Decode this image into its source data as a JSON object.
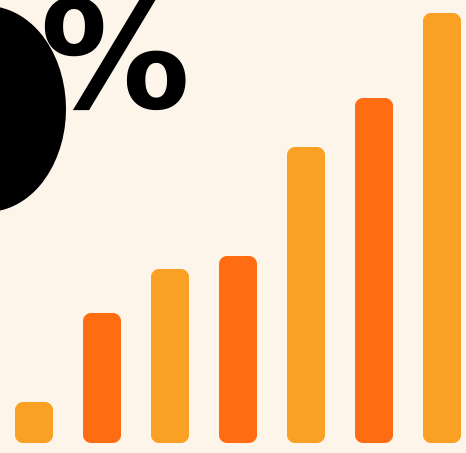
{
  "graphic": {
    "symbol": "%",
    "background_color": "#fdf4ea",
    "text_color": "#000000"
  },
  "bars": {
    "values": [
      1,
      3.2,
      4.3,
      4.6,
      7.3,
      8.5,
      10.6
    ],
    "colors": [
      "#f9a025",
      "#ff6c11",
      "#f9a025",
      "#ff6c11",
      "#f9a025",
      "#ff6c11",
      "#f9a025"
    ]
  }
}
